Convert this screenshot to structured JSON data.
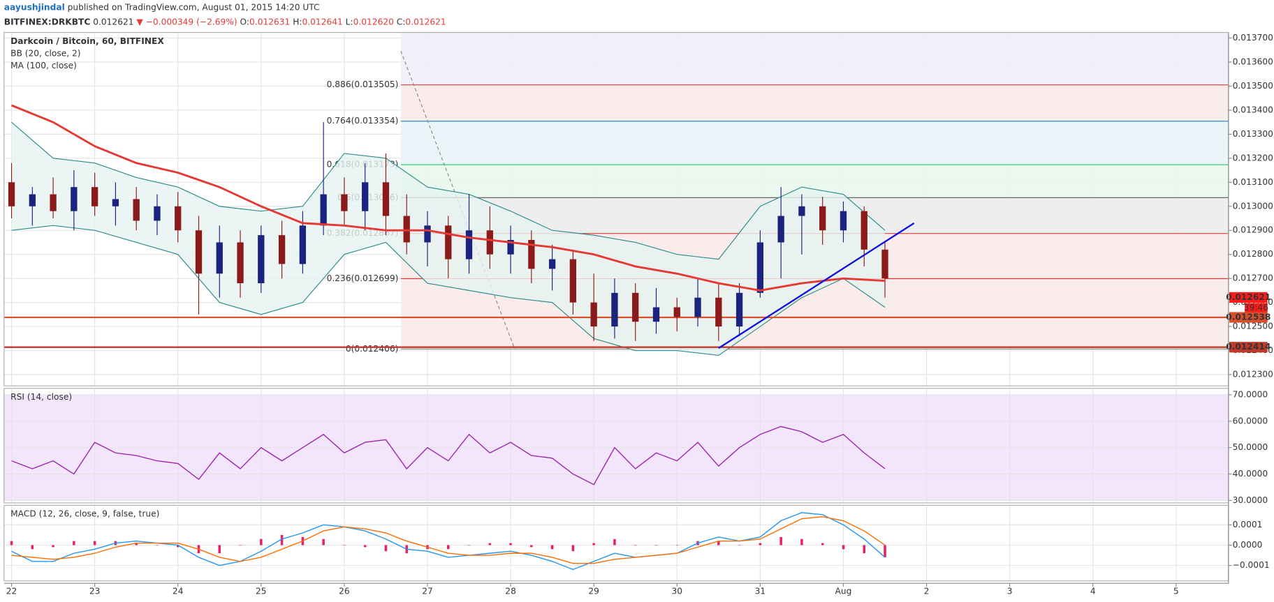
{
  "header": {
    "author": "aayushjindal",
    "published": "published on TradingView.com, August 01, 2015 14:20 UTC",
    "symbol": "BITFINEX:DRKBTC",
    "last": "0.012621",
    "arrow": "▼",
    "change": "−0.000349 (−2.69%)",
    "ohlc": [
      {
        "label": "O:",
        "value": "0.012631"
      },
      {
        "label": "H:",
        "value": "0.012641"
      },
      {
        "label": "L:",
        "value": "0.012620"
      },
      {
        "label": "C:",
        "value": "0.012621"
      }
    ]
  },
  "chart_data": [
    {
      "type": "candlestick",
      "title": "Darkcoin / Bitcoin, 60, BITFINEX",
      "indicators": [
        "BB (20, close, 2)",
        "MA (100, close)"
      ],
      "x": [
        22,
        22.25,
        22.5,
        22.75,
        23,
        23.25,
        23.5,
        23.75,
        24,
        24.25,
        24.5,
        24.75,
        25,
        25.25,
        25.5,
        25.75,
        26,
        26.25,
        26.5,
        26.75,
        27,
        27.25,
        27.5,
        27.75,
        28,
        28.25,
        28.5,
        28.75,
        29,
        29.25,
        29.5,
        29.75,
        30,
        30.25,
        30.5,
        30.75,
        31,
        31.25,
        31.5,
        31.75,
        32,
        32.25,
        32.5
      ],
      "open": [
        0.0131,
        0.013,
        0.01305,
        0.01298,
        0.01308,
        0.013,
        0.01303,
        0.01294,
        0.013,
        0.0129,
        0.01272,
        0.01285,
        0.01268,
        0.01288,
        0.01276,
        0.01292,
        0.01305,
        0.01298,
        0.0131,
        0.01296,
        0.01285,
        0.01292,
        0.01278,
        0.0129,
        0.0128,
        0.01286,
        0.01274,
        0.01278,
        0.0126,
        0.0125,
        0.01264,
        0.01252,
        0.01258,
        0.01254,
        0.01262,
        0.0125,
        0.01264,
        0.01285,
        0.01296,
        0.013,
        0.0129,
        0.01298,
        0.01282
      ],
      "high": [
        0.01318,
        0.01308,
        0.01312,
        0.01315,
        0.01314,
        0.0131,
        0.01308,
        0.01305,
        0.01306,
        0.01296,
        0.01292,
        0.0129,
        0.01292,
        0.01294,
        0.01298,
        0.01335,
        0.01312,
        0.01318,
        0.01322,
        0.01305,
        0.01298,
        0.01296,
        0.01305,
        0.013,
        0.01292,
        0.0129,
        0.01284,
        0.01282,
        0.01272,
        0.0127,
        0.01268,
        0.01266,
        0.01262,
        0.0127,
        0.01268,
        0.01268,
        0.0129,
        0.01308,
        0.01305,
        0.01304,
        0.01302,
        0.013,
        0.01285
      ],
      "low": [
        0.01295,
        0.01292,
        0.01295,
        0.0129,
        0.01296,
        0.01292,
        0.0129,
        0.01288,
        0.01285,
        0.01255,
        0.01262,
        0.01262,
        0.01264,
        0.0127,
        0.01272,
        0.01288,
        0.01292,
        0.0129,
        0.01288,
        0.0128,
        0.01275,
        0.0127,
        0.01272,
        0.01274,
        0.01272,
        0.01268,
        0.01265,
        0.01255,
        0.01244,
        0.01245,
        0.01244,
        0.01247,
        0.01248,
        0.0125,
        0.01244,
        0.01246,
        0.01262,
        0.0127,
        0.0128,
        0.01284,
        0.01285,
        0.01275,
        0.01262
      ],
      "close": [
        0.013,
        0.01305,
        0.01298,
        0.01308,
        0.013,
        0.01303,
        0.01294,
        0.013,
        0.0129,
        0.01272,
        0.01285,
        0.01268,
        0.01288,
        0.01276,
        0.01292,
        0.01305,
        0.01298,
        0.0131,
        0.01296,
        0.01285,
        0.01292,
        0.01278,
        0.0129,
        0.0128,
        0.01286,
        0.01274,
        0.01278,
        0.0126,
        0.0125,
        0.01264,
        0.01252,
        0.01258,
        0.01254,
        0.01262,
        0.0125,
        0.01264,
        0.01285,
        0.01296,
        0.013,
        0.0129,
        0.01298,
        0.01282,
        0.0127
      ],
      "up_color": "#1a237e",
      "down_color": "#8b1a1a",
      "band_x": [
        22,
        22.5,
        23,
        23.5,
        24,
        24.5,
        25,
        25.5,
        26,
        26.5,
        27,
        27.5,
        28,
        28.5,
        29,
        29.5,
        30,
        30.5,
        31,
        31.5,
        32,
        32.5
      ],
      "ma": {
        "color": "#e53935",
        "values": [
          0.01342,
          0.01335,
          0.01325,
          0.01318,
          0.01314,
          0.01308,
          0.013,
          0.01293,
          0.01292,
          0.0129,
          0.0129,
          0.01287,
          0.01285,
          0.01283,
          0.0128,
          0.01275,
          0.01272,
          0.01268,
          0.01265,
          0.01268,
          0.0127,
          0.01269
        ]
      },
      "bb": {
        "color": "#2e8b8b",
        "fill": "#e6f4f1",
        "upper": [
          0.01335,
          0.0132,
          0.01318,
          0.01312,
          0.01308,
          0.013,
          0.01298,
          0.013,
          0.01322,
          0.0132,
          0.01308,
          0.01305,
          0.01298,
          0.0129,
          0.01288,
          0.01285,
          0.0128,
          0.01278,
          0.013,
          0.01308,
          0.01305,
          0.0129
        ],
        "lower": [
          0.0129,
          0.01292,
          0.0129,
          0.01285,
          0.0128,
          0.0126,
          0.01255,
          0.0126,
          0.0128,
          0.01285,
          0.01268,
          0.01265,
          0.01262,
          0.0126,
          0.01245,
          0.0124,
          0.0124,
          0.01238,
          0.0125,
          0.01262,
          0.0127,
          0.01258
        ]
      },
      "fib": {
        "start_x": 26.68,
        "levels": [
          {
            "label": "0.886(0.013505)",
            "value": 0.013505,
            "color": "#e53935",
            "fill": "#eeeefb"
          },
          {
            "label": "0.764(0.013354)",
            "value": 0.013354,
            "color": "#2b8cbe",
            "fill": "#fbeaea"
          },
          {
            "label": "0.618(0.013173)",
            "value": 0.013173,
            "color": "#2ecc71",
            "fill": "#e8f4f8"
          },
          {
            "label": "0.5(0.013036)",
            "value": 0.013036,
            "color": "#555555",
            "fill": "#e8f7ee"
          },
          {
            "label": "0.382(0.012887)",
            "value": 0.012887,
            "color": "#e53935",
            "fill": "#ececec"
          },
          {
            "label": "0.236(0.012699)",
            "value": 0.012699,
            "color": "#e53935",
            "fill": "#fbeaea"
          },
          {
            "label": "0(0.012406)",
            "value": 0.012406,
            "color": "#888888",
            "fill": "#fbeaea"
          }
        ],
        "trend": {
          "x": [
            26.68,
            28.05
          ],
          "y": [
            0.013646,
            0.012406
          ],
          "color": "#888888"
        }
      },
      "trendline": {
        "x": [
          30.5,
          32.85
        ],
        "y": [
          0.01241,
          0.01293
        ],
        "color": "#1010e0"
      },
      "price_labels": [
        {
          "value": 0.012621,
          "label": "0.012621",
          "color": "#ff1a1a",
          "line": false
        },
        {
          "value": 0.012538,
          "label": "0.012538",
          "color": "#d9502c",
          "line": true
        },
        {
          "value": 0.012414,
          "label": "0.012414",
          "color": "#c0392b",
          "line": true
        }
      ],
      "countdown": "39:46",
      "ylim": [
        0.012253,
        0.013723
      ],
      "yticks": [
        {
          "value": 0.0123,
          "label": "0.012300"
        },
        {
          "value": 0.0124,
          "label": "0.012400"
        },
        {
          "value": 0.0125,
          "label": "0.012500"
        },
        {
          "value": 0.0126,
          "label": "0.012600"
        },
        {
          "value": 0.0127,
          "label": "0.012700"
        },
        {
          "value": 0.0128,
          "label": "0.012800"
        },
        {
          "value": 0.0129,
          "label": "0.012900"
        },
        {
          "value": 0.013,
          "label": "0.013000"
        },
        {
          "value": 0.0131,
          "label": "0.013100"
        },
        {
          "value": 0.0132,
          "label": "0.013200"
        },
        {
          "value": 0.0133,
          "label": "0.013300"
        },
        {
          "value": 0.0134,
          "label": "0.013400"
        },
        {
          "value": 0.0135,
          "label": "0.013500"
        },
        {
          "value": 0.0136,
          "label": "0.013600"
        },
        {
          "value": 0.0137,
          "label": "0.013700"
        }
      ],
      "grid": true
    },
    {
      "type": "line",
      "title": "RSI (14, close)",
      "color": "#9c27b0",
      "band_color": "#f3e5fb",
      "x": [
        22,
        22.25,
        22.5,
        22.75,
        23,
        23.25,
        23.5,
        23.75,
        24,
        24.25,
        24.5,
        24.75,
        25,
        25.25,
        25.5,
        25.75,
        26,
        26.25,
        26.5,
        26.75,
        27,
        27.25,
        27.5,
        27.75,
        28,
        28.25,
        28.5,
        28.75,
        29,
        29.25,
        29.5,
        29.75,
        30,
        30.25,
        30.5,
        30.75,
        31,
        31.25,
        31.5,
        31.75,
        32,
        32.25,
        32.5
      ],
      "values": [
        45,
        42,
        45,
        40,
        52,
        48,
        47,
        45,
        44,
        38,
        48,
        42,
        50,
        45,
        50,
        55,
        48,
        52,
        53,
        42,
        50,
        45,
        55,
        48,
        52,
        47,
        46,
        40,
        36,
        50,
        42,
        48,
        45,
        52,
        43,
        50,
        55,
        58,
        56,
        52,
        55,
        48,
        42
      ],
      "ylim": [
        29.08,
        72.44
      ],
      "yticks": [
        {
          "value": 70,
          "label": "70.0000"
        },
        {
          "value": 60,
          "label": "60.0000"
        },
        {
          "value": 50,
          "label": "50.0000"
        },
        {
          "value": 40,
          "label": "40.0000"
        },
        {
          "value": 30,
          "label": "30.0000"
        }
      ],
      "grid": true
    },
    {
      "type": "macd",
      "title": "MACD (12, 26, close, 9, false, true)",
      "x": [
        22,
        22.25,
        22.5,
        22.75,
        23,
        23.25,
        23.5,
        23.75,
        24,
        24.25,
        24.5,
        24.75,
        25,
        25.25,
        25.5,
        25.75,
        26,
        26.25,
        26.5,
        26.75,
        27,
        27.25,
        27.5,
        27.75,
        28,
        28.25,
        28.5,
        28.75,
        29,
        29.25,
        29.5,
        29.75,
        30,
        30.25,
        30.5,
        30.75,
        31,
        31.25,
        31.5,
        31.75,
        32,
        32.25,
        32.5
      ],
      "series": [
        {
          "name": "MACD",
          "color": "#2196f3",
          "values": [
            -3e-05,
            -8e-05,
            -8e-05,
            -4e-05,
            -2e-05,
            1e-05,
            2e-05,
            1e-05,
            0,
            -6e-05,
            -0.0001,
            -8e-05,
            -3e-05,
            3e-05,
            6e-05,
            0.0001,
            9e-05,
            7e-05,
            3e-05,
            -2e-05,
            -3e-05,
            -6e-05,
            -5e-05,
            -4e-05,
            -3e-05,
            -5e-05,
            -8e-05,
            -0.00012,
            -8e-05,
            -4e-05,
            -6e-05,
            -5e-05,
            -4e-05,
            1e-05,
            4e-05,
            2e-05,
            4e-05,
            0.00012,
            0.00016,
            0.00015,
            0.0001,
            3e-05,
            -6e-05
          ]
        },
        {
          "name": "Signal",
          "color": "#ff6d00",
          "values": [
            -5e-05,
            -6e-05,
            -7e-05,
            -6e-05,
            -4e-05,
            -1e-05,
            1e-05,
            1e-05,
            1e-05,
            -2e-05,
            -6e-05,
            -8e-05,
            -6e-05,
            -2e-05,
            2e-05,
            7e-05,
            9e-05,
            8e-05,
            6e-05,
            2e-05,
            -1e-05,
            -4e-05,
            -5e-05,
            -5e-05,
            -4e-05,
            -4e-05,
            -6e-05,
            -9e-05,
            -9e-05,
            -7e-05,
            -6e-05,
            -5e-05,
            -4e-05,
            -1e-05,
            2e-05,
            2e-05,
            3e-05,
            8e-05,
            0.00013,
            0.00014,
            0.00012,
            7e-05,
            0
          ]
        },
        {
          "name": "Histogram",
          "color": "#e91e63",
          "values": [
            2e-05,
            -2e-05,
            -1e-05,
            2e-05,
            2e-05,
            2e-05,
            1e-05,
            0,
            -1e-05,
            -4e-05,
            -4e-05,
            0,
            3e-05,
            5e-05,
            4e-05,
            3e-05,
            0,
            -1e-05,
            -3e-05,
            -4e-05,
            -2e-05,
            -2e-05,
            0,
            1e-05,
            1e-05,
            -1e-05,
            -2e-05,
            -3e-05,
            1e-05,
            3e-05,
            0,
            0,
            0,
            2e-05,
            2e-05,
            0,
            1e-05,
            4e-05,
            3e-05,
            1e-05,
            -2e-05,
            -4e-05,
            -6e-05
          ]
        }
      ],
      "ylim": [
        -0.000176,
        0.000196
      ],
      "yticks": [
        {
          "value": 0.0001,
          "label": "0.0001"
        },
        {
          "value": 0,
          "label": "0.0000"
        },
        {
          "value": -0.0001,
          "label": "−0.0001"
        }
      ],
      "xlim": [
        21.91,
        36.63
      ],
      "xticks": [
        22,
        23,
        24,
        25,
        26,
        27,
        28,
        29,
        30,
        31,
        {
          "value": 32,
          "label": "Aug"
        },
        {
          "value": 33,
          "label": "2"
        },
        {
          "value": 34,
          "label": "3"
        },
        {
          "value": 35,
          "label": "4"
        },
        {
          "value": 36,
          "label": "5"
        }
      ],
      "grid": true
    }
  ]
}
